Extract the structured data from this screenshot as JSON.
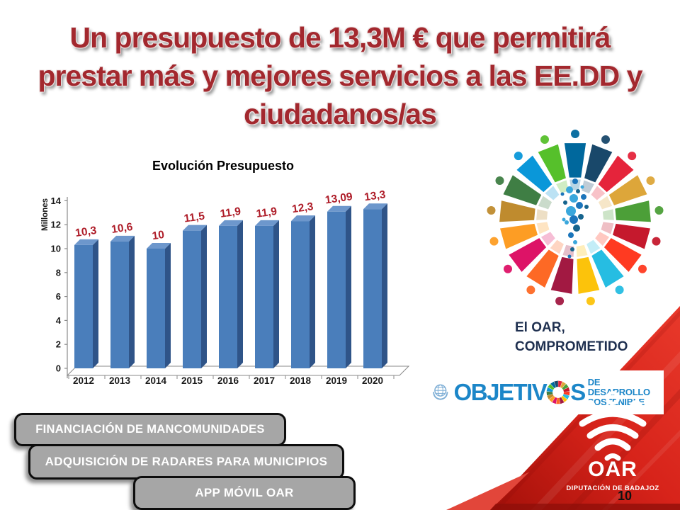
{
  "title": {
    "lines": [
      "Un presupuesto de 13,3M € que permitirá",
      "prestar más y mejores servicios a las EE.DD y",
      "ciudadanos/as"
    ],
    "color": "#A3282E"
  },
  "chart_data": {
    "type": "bar",
    "title": "Evolución Presupuesto",
    "categories": [
      "2012",
      "2013",
      "2014",
      "2015",
      "2016",
      "2017",
      "2018",
      "2019",
      "2020"
    ],
    "values": [
      10.3,
      10.6,
      10,
      11.5,
      11.9,
      11.9,
      12.3,
      13.09,
      13.3
    ],
    "value_labels": [
      "10,3",
      "10,6",
      "10",
      "11,5",
      "11,9",
      "11,9",
      "12,3",
      "13,09",
      "13,3"
    ],
    "xlabel": "",
    "ylabel": "Millones",
    "ylim": [
      0,
      14
    ],
    "ytick_step": 2,
    "grid": false,
    "legend": "none",
    "bar_color": "#4A7EBB",
    "bar_side_color": "#2F5488",
    "bar_top_color": "#6D97CC",
    "label_color": "#AE1C28"
  },
  "sdg_wheel": {
    "colors": [
      "#E5243B",
      "#DDA63A",
      "#4C9F38",
      "#C5192D",
      "#FF3A21",
      "#26BDE2",
      "#FCC30B",
      "#A21942",
      "#FD6925",
      "#DD1367",
      "#FD9D24",
      "#BF8B2E",
      "#3F7E44",
      "#0A97D9",
      "#56C02B",
      "#00689D",
      "#19486A"
    ],
    "center_dot_colors": [
      "#1B75BB",
      "#3AA7DC",
      "#16648E"
    ]
  },
  "commitment": {
    "lines": [
      "El OAR,",
      "COMPROMETIDO"
    ],
    "color": "#1F3050"
  },
  "sdg_logo": {
    "prefix": "OBJETIV",
    "suffix": "S",
    "line1": "DE DESARROLLO",
    "line2": "SOSTENIBLE",
    "color": "#1C86C8"
  },
  "buttons": [
    {
      "label": "FINANCIACIÓN DE MANCOMUNIDADES"
    },
    {
      "label": "ADQUISICIÓN DE RADARES PARA MUNICIPIOS"
    },
    {
      "label": "APP MÓVIL OAR"
    }
  ],
  "ribbon": {
    "red": "#D7231A",
    "logo_text": "OAR",
    "org_text": "DIPUTACIÓN DE BADAJOZ",
    "page_number": "10"
  }
}
